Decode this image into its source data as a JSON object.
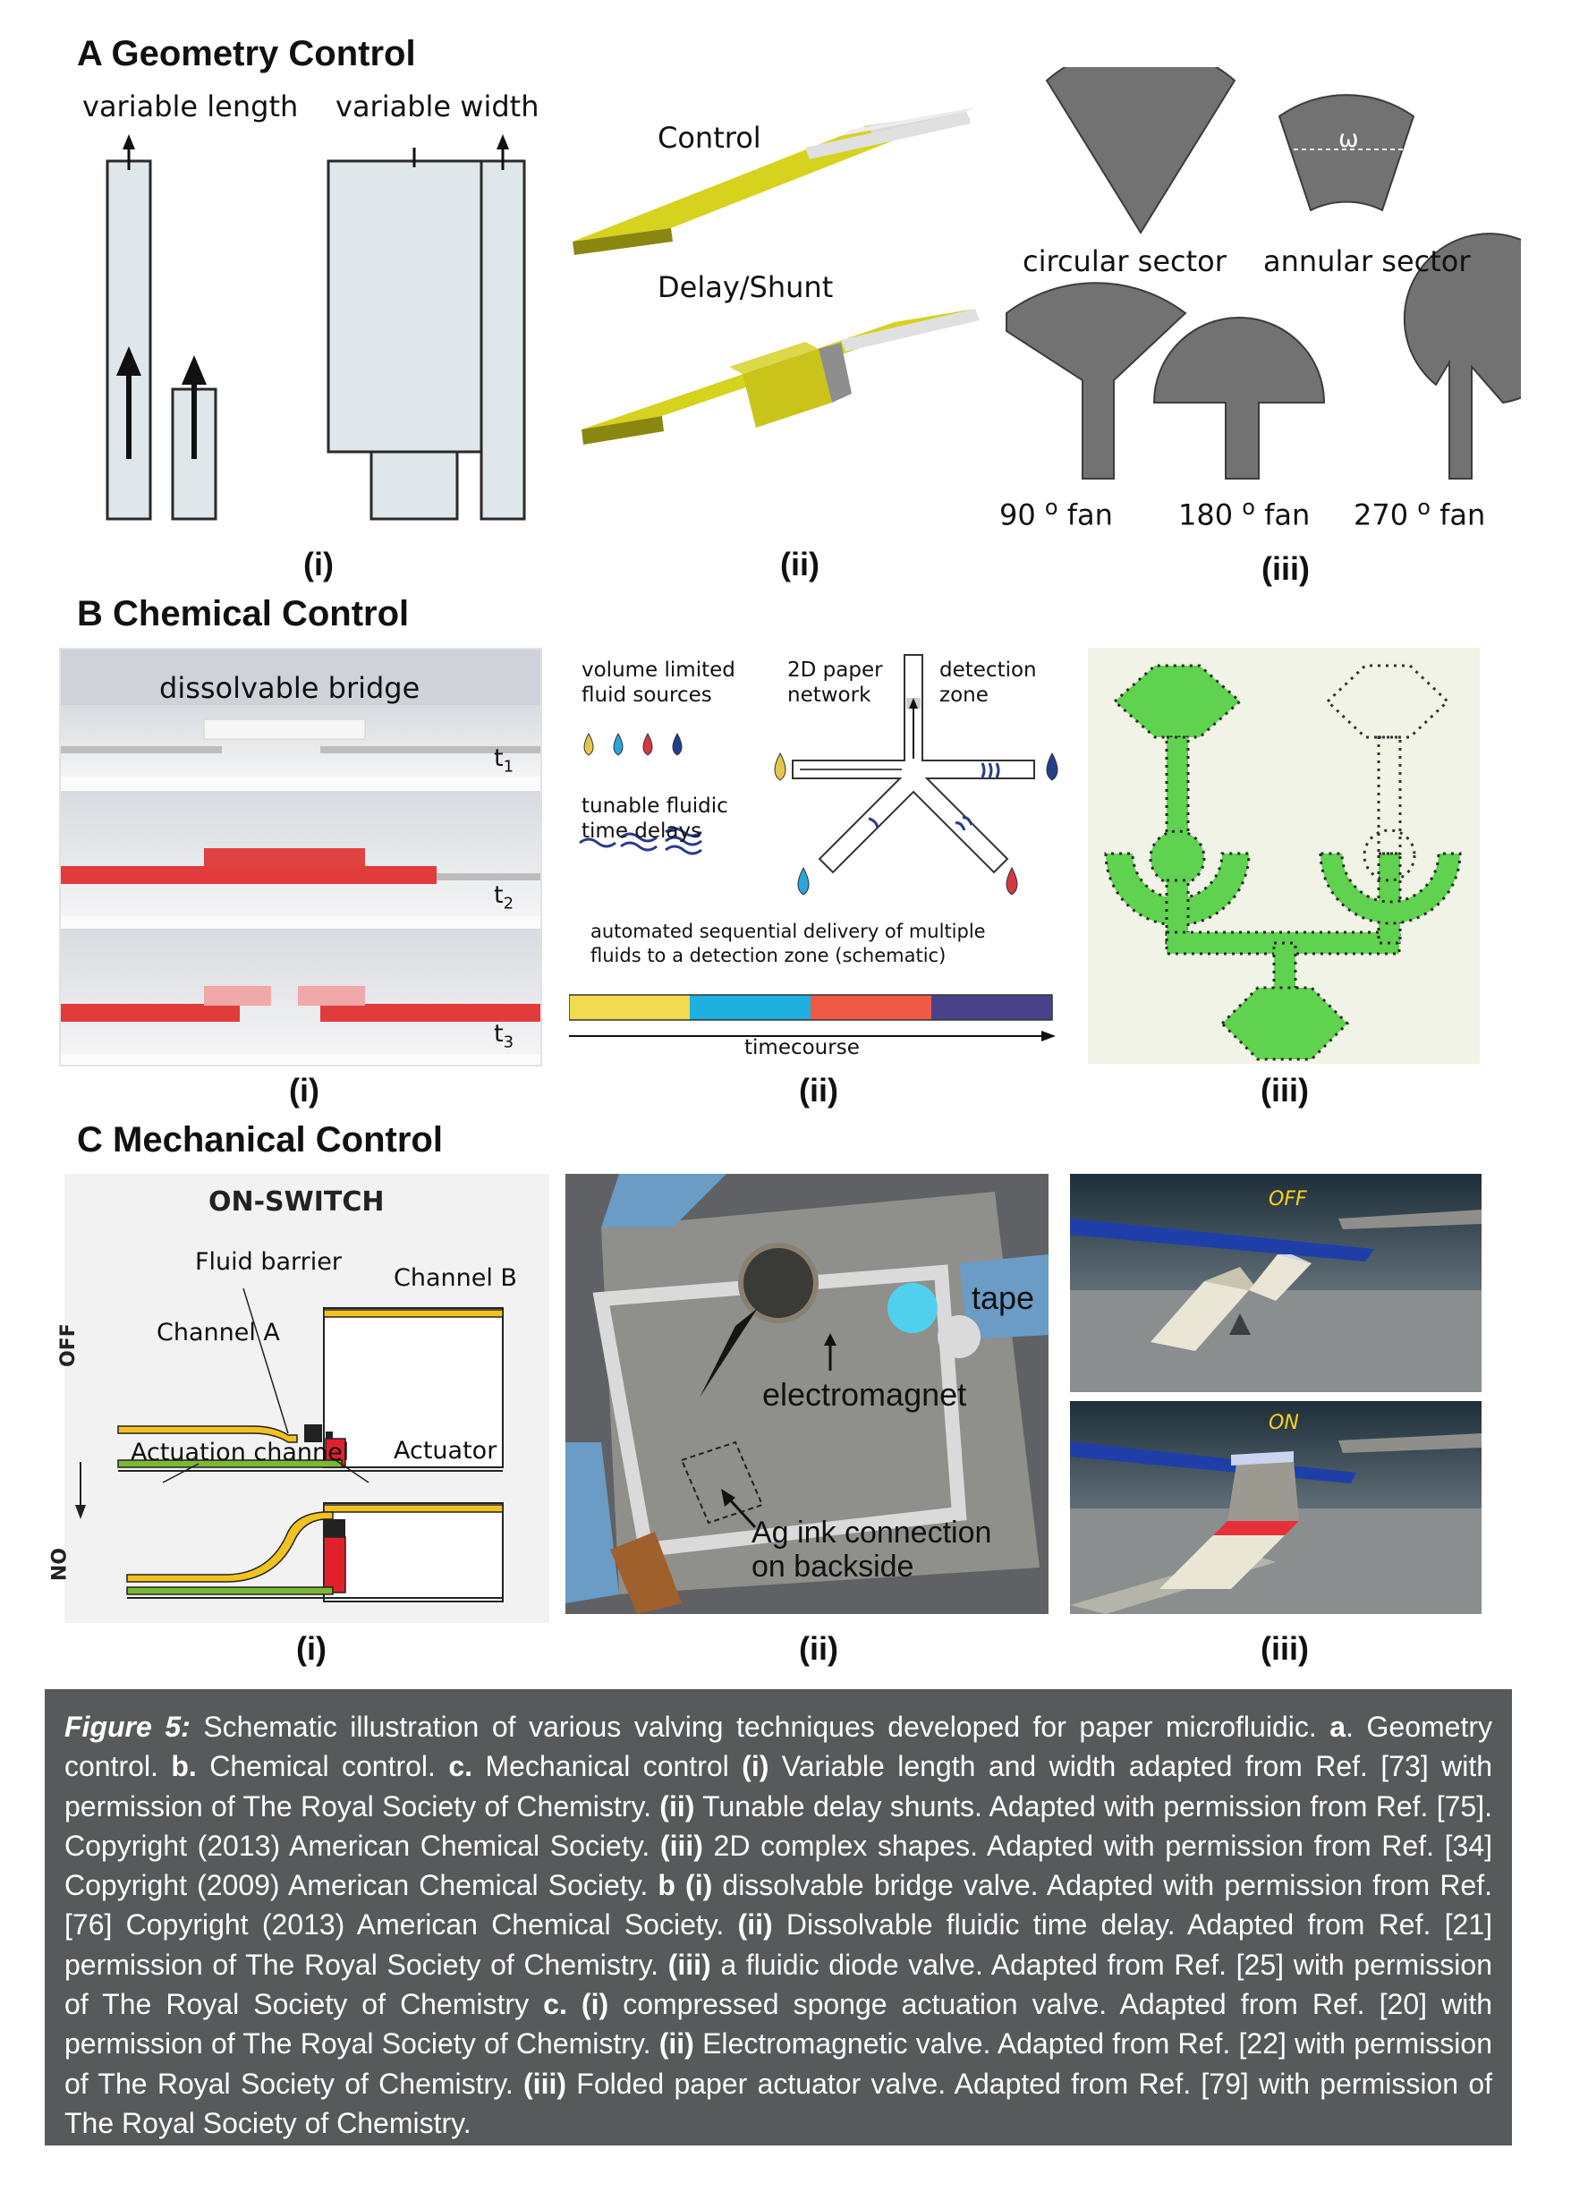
{
  "sections": {
    "A": {
      "title": "A  Geometry Control"
    },
    "B": {
      "title": "B  Chemical Control"
    },
    "C": {
      "title": "C  Mechanical Control"
    }
  },
  "panelA": {
    "i": {
      "variable_length": "variable length",
      "variable_width": "variable width",
      "label": "(i)"
    },
    "ii": {
      "control": "Control",
      "delay": "Delay/Shunt",
      "label": "(ii)"
    },
    "iii": {
      "circular": "circular sector",
      "annular": "annular sector",
      "omega": "ω",
      "fan90": "90",
      "fan180": "180",
      "fan270": "270",
      "deg": "o",
      "fan_word": "fan",
      "label": "(iii)"
    }
  },
  "panelB": {
    "i": {
      "bridge": "dissolvable bridge",
      "t1": "t",
      "t2": "t",
      "t3": "t",
      "s1": "1",
      "s2": "2",
      "s3": "3",
      "label": "(i)"
    },
    "ii": {
      "volume1": "volume limited",
      "volume2": "fluid sources",
      "paper1": "2D paper",
      "paper2": "network",
      "detect1": "detection",
      "detect2": "zone",
      "tunable1": "tunable fluidic",
      "tunable2": "time delays",
      "auto1": "automated sequential delivery of multiple",
      "auto2": "fluids to a detection zone (schematic)",
      "timecourse": "timecourse",
      "label": "(ii)"
    },
    "iii": {
      "label": "(iii)"
    }
  },
  "panelC": {
    "i": {
      "on_switch": "ON-SWITCH",
      "fluid_barrier": "Fluid barrier",
      "channel_b": "Channel B",
      "channel_a": "Channel A",
      "actuation": "Actuation channel",
      "actuator": "Actuator",
      "off": "OFF",
      "on": "ON",
      "label": "(i)"
    },
    "ii": {
      "tape": "tape",
      "electromagnet": "electromagnet",
      "ag1": "Ag ink connection",
      "ag2": "on backside",
      "label": "(ii)"
    },
    "iii": {
      "off": "OFF",
      "on": "ON",
      "label": "(iii)"
    }
  },
  "caption": {
    "fig": "Figure 5:",
    "t1": " Schematic illustration of various valving techniques developed for paper microfluidic. ",
    "a": "a",
    "t2": ". Geometry control. ",
    "b": "b.",
    "t3": " Chemical control. ",
    "c": "c.",
    "t4": " Mechanical control ",
    "i1": "(i)",
    "t5": " Variable length and width adapted from Ref. [73] with permission of The Royal Society of Chemistry. ",
    "ii1": "(ii)",
    "t6": " Tunable delay shunts. Adapted with permission from Ref. [75]. Copyright (2013) American Chemical Society. ",
    "iii1": "(iii)",
    "t7": " 2D complex shapes. Adapted with permission from Ref. [34] Copyright (2009) American Chemical Society. ",
    "b2": "b (i)",
    "t8": " dissolvable bridge valve. Adapted with permission from Ref. [76] Copyright (2013) American Chemical Society. ",
    "ii2": "(ii)",
    "t9": " Dissolvable fluidic time delay. Adapted from Ref. [21] permission of The Royal Society of Chemistry. ",
    "iii2": "(iii)",
    "t10": " a fluidic diode valve. Adapted from Ref. [25] with permission of The Royal Society of Chemistry ",
    "c2": "c. (i)",
    "t11": " compressed sponge actuation valve. Adapted from Ref. [20] with permission of The Royal Society of Chemistry. ",
    "ii3": "(ii)",
    "t12": " Electromagnetic valve. Adapted from Ref. [22] with permission of The Royal Society of Chemistry. ",
    "iii3": "(iii)",
    "t13": " Folded paper actuator valve. Adapted from Ref. [79] with permission of The Royal Society of Chemistry."
  }
}
